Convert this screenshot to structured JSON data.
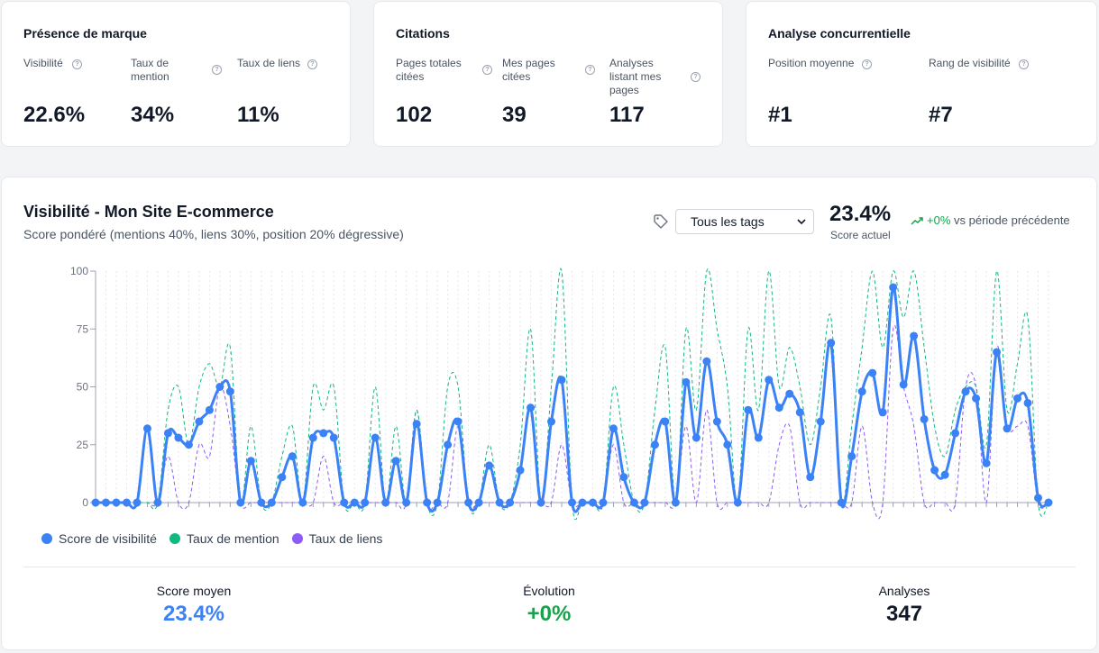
{
  "cards": [
    {
      "title": "Présence de marque",
      "metrics": [
        {
          "label": "Visibilité",
          "value": "22.6%"
        },
        {
          "label": "Taux de mention",
          "value": "34%"
        },
        {
          "label": "Taux de liens",
          "value": "11%"
        }
      ]
    },
    {
      "title": "Citations",
      "metrics": [
        {
          "label": "Pages totales citées",
          "value": "102"
        },
        {
          "label": "Mes pages citées",
          "value": "39"
        },
        {
          "label": "Analyses listant mes pages",
          "value": "117"
        }
      ]
    },
    {
      "title": "Analyse concurrentielle",
      "metrics": [
        {
          "label": "Position moyenne",
          "value": "#1"
        },
        {
          "label": "Rang de visibilité",
          "value": "#7"
        }
      ]
    }
  ],
  "chart_header": {
    "title": "Visibilité - Mon Site E-commerce",
    "subtitle": "Score pondéré (mentions 40%, liens 30%, position 20% dégressive)",
    "tag_select": "Tous les tags",
    "current_value": "23.4%",
    "current_label": "Score actuel",
    "trend_value": "+0%",
    "trend_text": "vs période précédente"
  },
  "chart_data": {
    "type": "line",
    "ylim": [
      0,
      100
    ],
    "yticks": [
      "0",
      "25",
      "50",
      "75",
      "100"
    ],
    "x_count": 93,
    "series": [
      {
        "name": "Score de visibilité",
        "color": "#3b82f6",
        "style": "solid",
        "values": [
          0,
          0,
          0,
          0,
          0,
          32,
          0,
          30,
          28,
          25,
          35,
          40,
          50,
          48,
          0,
          18,
          0,
          0,
          11,
          20,
          0,
          28,
          30,
          28,
          0,
          0,
          0,
          28,
          0,
          18,
          0,
          34,
          0,
          0,
          25,
          35,
          0,
          0,
          16,
          0,
          0,
          14,
          41,
          0,
          35,
          53,
          0,
          0,
          0,
          0,
          32,
          11,
          0,
          0,
          25,
          35,
          0,
          52,
          28,
          61,
          35,
          25,
          0,
          40,
          28,
          53,
          41,
          47,
          39,
          11,
          35,
          69,
          0,
          20,
          48,
          56,
          39,
          93,
          51,
          72,
          36,
          14,
          12,
          30,
          48,
          45,
          17,
          65,
          32,
          45,
          43,
          2,
          0
        ]
      },
      {
        "name": "Taux de mention",
        "color": "#10b981",
        "style": "dashed",
        "values": [
          0,
          0,
          0,
          0,
          0,
          0,
          0,
          40,
          50,
          25,
          50,
          60,
          50,
          67,
          0,
          33,
          0,
          0,
          20,
          33,
          0,
          50,
          40,
          50,
          0,
          0,
          0,
          50,
          0,
          33,
          0,
          40,
          0,
          0,
          50,
          50,
          0,
          0,
          25,
          0,
          0,
          25,
          75,
          0,
          50,
          100,
          0,
          0,
          0,
          0,
          50,
          25,
          0,
          0,
          40,
          67,
          0,
          75,
          40,
          100,
          75,
          50,
          0,
          75,
          40,
          100,
          50,
          67,
          50,
          25,
          50,
          80,
          0,
          33,
          67,
          100,
          67,
          100,
          80,
          100,
          67,
          33,
          20,
          40,
          50,
          50,
          25,
          100,
          40,
          60,
          80,
          0,
          0
        ]
      },
      {
        "name": "Taux de liens",
        "color": "#8b5cf6",
        "style": "dashed",
        "values": [
          0,
          0,
          0,
          0,
          0,
          0,
          0,
          20,
          0,
          0,
          25,
          20,
          50,
          33,
          0,
          0,
          0,
          0,
          0,
          0,
          0,
          0,
          20,
          0,
          0,
          0,
          0,
          0,
          0,
          0,
          0,
          40,
          0,
          0,
          0,
          33,
          0,
          0,
          0,
          0,
          0,
          0,
          0,
          0,
          0,
          25,
          0,
          0,
          0,
          0,
          25,
          0,
          0,
          0,
          0,
          0,
          0,
          33,
          0,
          40,
          0,
          0,
          0,
          0,
          0,
          0,
          25,
          33,
          0,
          0,
          0,
          0,
          0,
          0,
          33,
          0,
          0,
          75,
          50,
          33,
          0,
          0,
          0,
          0,
          50,
          50,
          0,
          67,
          33,
          33,
          33,
          0,
          0
        ]
      }
    ]
  },
  "stats": [
    {
      "label": "Score moyen",
      "value": "23.4%",
      "color": "#3b82f6"
    },
    {
      "label": "Évolution",
      "value": "+0%",
      "color": "#16a34a"
    },
    {
      "label": "Analyses",
      "value": "347",
      "color": "#111827"
    }
  ]
}
